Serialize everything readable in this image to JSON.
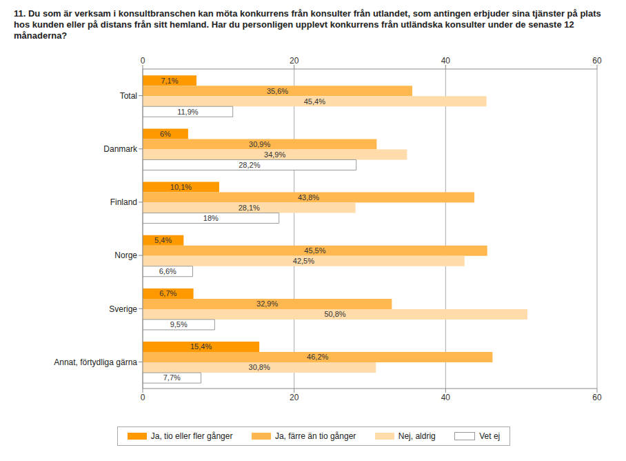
{
  "chart_data": {
    "type": "bar",
    "title": "11. Du som är verksam i konsultbranschen kan möta konkurrens från konsulter från utlandet, som antingen erbjuder sina tjänster på plats hos kunden eller på distans från sitt hemland. Har du personligen upplevt konkurrens från utländska konsulter under de senaste 12 månaderna?",
    "orientation": "horizontal",
    "categories": [
      "Total",
      "Danmark",
      "Finland",
      "Norge",
      "Sverige",
      "Annat, förtydliga gärna"
    ],
    "series": [
      {
        "name": "Ja, tio eller fler gånger",
        "color": "#ff9900",
        "values": [
          7.1,
          6,
          10.1,
          5.4,
          6.7,
          15.4
        ],
        "value_labels": [
          "7,1%",
          "6%",
          "10,1%",
          "5,4%",
          "6,7%",
          "15,4%"
        ]
      },
      {
        "name": "Ja, färre än tio gånger",
        "color": "#ffb850",
        "values": [
          35.6,
          30.9,
          43.8,
          45.5,
          32.9,
          46.2
        ],
        "value_labels": [
          "35,6%",
          "30,9%",
          "43,8%",
          "45,5%",
          "32,9%",
          "46,2%"
        ]
      },
      {
        "name": "Nej, aldrig",
        "color": "#ffdcaa",
        "values": [
          45.4,
          34.9,
          28.1,
          42.5,
          50.8,
          30.8
        ],
        "value_labels": [
          "45,4%",
          "34,9%",
          "28,1%",
          "42,5%",
          "50,8%",
          "30,8%"
        ]
      },
      {
        "name": "Vet ej",
        "color": "#ffffff",
        "values": [
          11.9,
          28.2,
          18,
          6.6,
          9.5,
          7.7
        ],
        "value_labels": [
          "11,9%",
          "28,2%",
          "18%",
          "6,6%",
          "9,5%",
          "7,7%"
        ]
      }
    ],
    "xlim": [
      0,
      60
    ],
    "xticks": [
      0,
      20,
      40,
      60
    ],
    "grid": true,
    "data_labels": true,
    "legend": "bottom"
  }
}
